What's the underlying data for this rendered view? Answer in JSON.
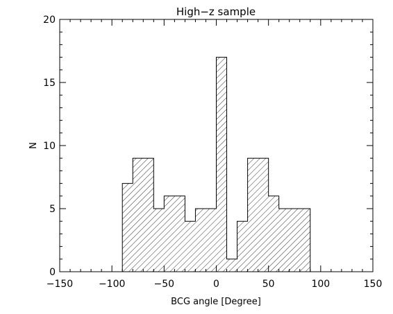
{
  "chart_data": {
    "type": "bar",
    "title": "High−z sample",
    "xlabel": "BCG angle [Degree]",
    "ylabel": "N",
    "xlim": [
      -150,
      150
    ],
    "ylim": [
      0,
      20
    ],
    "xticks": [
      -150,
      -100,
      -50,
      0,
      50,
      100,
      150
    ],
    "xtick_labels": [
      "−150",
      "−100",
      "−50",
      "0",
      "50",
      "100",
      "150"
    ],
    "yticks": [
      0,
      5,
      10,
      15,
      20
    ],
    "ytick_labels": [
      "0",
      "5",
      "10",
      "15",
      "20"
    ],
    "bin_width": 10,
    "bins": [
      {
        "x0": -90,
        "x1": -80,
        "count": 7
      },
      {
        "x0": -80,
        "x1": -70,
        "count": 9
      },
      {
        "x0": -70,
        "x1": -60,
        "count": 9
      },
      {
        "x0": -60,
        "x1": -50,
        "count": 5
      },
      {
        "x0": -50,
        "x1": -40,
        "count": 6
      },
      {
        "x0": -40,
        "x1": -30,
        "count": 6
      },
      {
        "x0": -30,
        "x1": -20,
        "count": 4
      },
      {
        "x0": -20,
        "x1": -10,
        "count": 5
      },
      {
        "x0": -10,
        "x1": 0,
        "count": 5
      },
      {
        "x0": 0,
        "x1": 10,
        "count": 17
      },
      {
        "x0": 10,
        "x1": 20,
        "count": 1
      },
      {
        "x0": 20,
        "x1": 30,
        "count": 4
      },
      {
        "x0": 30,
        "x1": 40,
        "count": 9
      },
      {
        "x0": 40,
        "x1": 50,
        "count": 9
      },
      {
        "x0": 50,
        "x1": 60,
        "count": 6
      },
      {
        "x0": 60,
        "x1": 70,
        "count": 5
      },
      {
        "x0": 70,
        "x1": 80,
        "count": 5
      },
      {
        "x0": 80,
        "x1": 90,
        "count": 5
      }
    ],
    "fill": "diagonal hatch",
    "colors": {
      "line": "#000000",
      "background": "#ffffff"
    }
  }
}
